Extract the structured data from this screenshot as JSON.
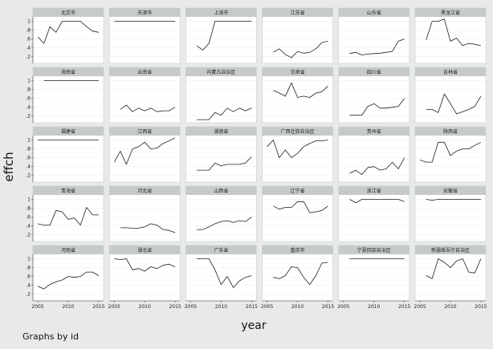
{
  "figure": {
    "footnote": "Graphs by id"
  },
  "chart_data": {
    "type": "line",
    "layout": "small-multiples",
    "xlabel": "year",
    "ylabel": "effch",
    "x": [
      2005,
      2006,
      2007,
      2008,
      2009,
      2010,
      2011,
      2012,
      2013,
      2014,
      2015
    ],
    "x_ticks": [
      2005,
      2010,
      2015
    ],
    "y_ticks": [
      0.2,
      0.4,
      0.6,
      0.8,
      1
    ],
    "y_tick_labels": [
      ".2",
      ".4",
      ".6",
      ".8",
      "1"
    ],
    "xlim": [
      2004.2,
      2015.8
    ],
    "ylim": [
      0.05,
      1.1
    ],
    "grid": true,
    "panels": [
      {
        "name": "北京市",
        "years": [
          2005,
          2006,
          2007,
          2008,
          2009,
          2010,
          2011,
          2012,
          2013,
          2014,
          2015
        ],
        "values": [
          0.65,
          0.5,
          0.88,
          0.75,
          1.0,
          1.0,
          1.0,
          1.0,
          0.88,
          0.78,
          0.75
        ]
      },
      {
        "name": "天津市",
        "years": [
          2005,
          2006,
          2007,
          2008,
          2009,
          2010,
          2011,
          2012,
          2013,
          2014,
          2015
        ],
        "values": [
          1.0,
          1.0,
          1.0,
          1.0,
          1.0,
          1.0,
          1.0,
          1.0,
          1.0,
          1.0,
          1.0
        ]
      },
      {
        "name": "上海市",
        "years": [
          2006,
          2007,
          2008,
          2009,
          2010,
          2011,
          2012,
          2013,
          2014,
          2015
        ],
        "values": [
          0.45,
          0.35,
          0.5,
          1.0,
          1.0,
          1.0,
          1.0,
          1.0,
          1.0,
          1.0
        ]
      },
      {
        "name": "江苏省",
        "years": [
          2006,
          2007,
          2008,
          2009,
          2010,
          2011,
          2012,
          2013,
          2014,
          2015
        ],
        "values": [
          0.3,
          0.38,
          0.25,
          0.18,
          0.32,
          0.28,
          0.3,
          0.38,
          0.52,
          0.55
        ]
      },
      {
        "name": "山东省",
        "years": [
          2006,
          2007,
          2008,
          2009,
          2010,
          2011,
          2012,
          2013,
          2014,
          2015
        ],
        "values": [
          0.27,
          0.3,
          0.24,
          0.26,
          0.27,
          0.28,
          0.3,
          0.32,
          0.55,
          0.6
        ]
      },
      {
        "name": "黑龙江省",
        "years": [
          2006,
          2007,
          2008,
          2009,
          2010,
          2011,
          2012,
          2013,
          2014,
          2015
        ],
        "values": [
          0.58,
          1.0,
          1.0,
          1.05,
          0.55,
          0.62,
          0.45,
          0.5,
          0.48,
          0.45
        ]
      },
      {
        "name": "海南省",
        "years": [
          2006,
          2007,
          2008,
          2009,
          2010,
          2011,
          2012,
          2013,
          2014,
          2015
        ],
        "values": [
          1.0,
          1.0,
          1.0,
          1.0,
          1.0,
          1.0,
          1.0,
          1.0,
          1.0,
          1.0
        ]
      },
      {
        "name": "云南省",
        "years": [
          2006,
          2007,
          2008,
          2009,
          2010,
          2011,
          2012,
          2013,
          2014,
          2015
        ],
        "values": [
          0.35,
          0.45,
          0.3,
          0.38,
          0.32,
          0.38,
          0.3,
          0.32,
          0.32,
          0.4
        ]
      },
      {
        "name": "内蒙古自治区",
        "years": [
          2006,
          2007,
          2008,
          2009,
          2010,
          2011,
          2012,
          2013,
          2014,
          2015
        ],
        "values": [
          0.12,
          0.12,
          0.12,
          0.28,
          0.22,
          0.38,
          0.3,
          0.38,
          0.32,
          0.38
        ]
      },
      {
        "name": "甘肃省",
        "years": [
          2006,
          2007,
          2008,
          2009,
          2010,
          2011,
          2012,
          2013,
          2014,
          2015
        ],
        "values": [
          0.78,
          0.72,
          0.65,
          0.95,
          0.62,
          0.65,
          0.62,
          0.72,
          0.75,
          0.88
        ]
      },
      {
        "name": "四川省",
        "years": [
          2006,
          2007,
          2008,
          2009,
          2010,
          2011,
          2012,
          2013,
          2014,
          2015
        ],
        "values": [
          0.22,
          0.22,
          0.22,
          0.42,
          0.48,
          0.38,
          0.38,
          0.4,
          0.42,
          0.6
        ]
      },
      {
        "name": "吉林省",
        "years": [
          2006,
          2007,
          2008,
          2009,
          2010,
          2011,
          2012,
          2013,
          2014,
          2015
        ],
        "values": [
          0.35,
          0.35,
          0.28,
          0.7,
          0.48,
          0.25,
          0.3,
          0.35,
          0.42,
          0.65
        ]
      },
      {
        "name": "福建省",
        "years": [
          2005,
          2006,
          2007,
          2008,
          2009,
          2010,
          2011,
          2012,
          2013,
          2014,
          2015
        ],
        "values": [
          1.0,
          1.0,
          1.0,
          1.0,
          1.0,
          1.0,
          1.0,
          1.0,
          1.0,
          1.0,
          1.0
        ]
      },
      {
        "name": "江西省",
        "years": [
          2005,
          2006,
          2007,
          2008,
          2009,
          2010,
          2011,
          2012,
          2013,
          2014,
          2015
        ],
        "values": [
          0.5,
          0.75,
          0.45,
          0.8,
          0.85,
          0.95,
          0.8,
          0.82,
          0.92,
          0.98,
          1.05
        ]
      },
      {
        "name": "湖南省",
        "years": [
          2006,
          2007,
          2008,
          2009,
          2010,
          2011,
          2012,
          2013,
          2014,
          2015
        ],
        "values": [
          0.32,
          0.32,
          0.32,
          0.48,
          0.42,
          0.45,
          0.45,
          0.45,
          0.48,
          0.62
        ]
      },
      {
        "name": "广西壮族自治区",
        "years": [
          2005,
          2006,
          2007,
          2008,
          2009,
          2010,
          2011,
          2012,
          2013,
          2014,
          2015
        ],
        "values": [
          0.85,
          1.0,
          0.6,
          0.78,
          0.6,
          0.7,
          0.85,
          0.92,
          0.98,
          0.98,
          1.0
        ]
      },
      {
        "name": "贵州省",
        "years": [
          2006,
          2007,
          2008,
          2009,
          2010,
          2011,
          2012,
          2013,
          2014,
          2015
        ],
        "values": [
          0.25,
          0.32,
          0.22,
          0.38,
          0.4,
          0.32,
          0.35,
          0.5,
          0.35,
          0.6
        ]
      },
      {
        "name": "陕西省",
        "years": [
          2005,
          2006,
          2007,
          2008,
          2009,
          2010,
          2011,
          2012,
          2013,
          2014,
          2015
        ],
        "values": [
          0.55,
          0.5,
          0.5,
          0.95,
          0.95,
          0.65,
          0.75,
          0.8,
          0.8,
          0.88,
          0.95
        ]
      },
      {
        "name": "青海省",
        "years": [
          2005,
          2006,
          2007,
          2008,
          2009,
          2010,
          2011,
          2012,
          2013,
          2014,
          2015
        ],
        "values": [
          0.45,
          0.42,
          0.42,
          0.75,
          0.72,
          0.55,
          0.58,
          0.42,
          0.82,
          0.65,
          0.65
        ]
      },
      {
        "name": "河北省",
        "years": [
          2006,
          2007,
          2008,
          2009,
          2010,
          2011,
          2012,
          2013,
          2014,
          2015
        ],
        "values": [
          0.36,
          0.36,
          0.35,
          0.35,
          0.38,
          0.45,
          0.42,
          0.32,
          0.3,
          0.25
        ]
      },
      {
        "name": "山西省",
        "years": [
          2006,
          2007,
          2008,
          2009,
          2010,
          2011,
          2012,
          2013,
          2014,
          2015
        ],
        "values": [
          0.32,
          0.32,
          0.38,
          0.45,
          0.5,
          0.52,
          0.48,
          0.52,
          0.5,
          0.6
        ]
      },
      {
        "name": "辽宁省",
        "years": [
          2006,
          2007,
          2008,
          2009,
          2010,
          2011,
          2012,
          2013,
          2014,
          2015
        ],
        "values": [
          0.85,
          0.78,
          0.82,
          0.82,
          0.95,
          0.95,
          0.7,
          0.72,
          0.75,
          0.85
        ]
      },
      {
        "name": "浙江省",
        "years": [
          2006,
          2007,
          2008,
          2009,
          2010,
          2011,
          2012,
          2013,
          2014,
          2015
        ],
        "values": [
          1.0,
          0.92,
          1.0,
          1.0,
          1.0,
          1.0,
          1.0,
          1.0,
          1.0,
          0.95
        ]
      },
      {
        "name": "安徽省",
        "years": [
          2006,
          2007,
          2008,
          2009,
          2010,
          2011,
          2012,
          2013,
          2014,
          2015
        ],
        "values": [
          1.0,
          0.98,
          1.0,
          1.0,
          1.0,
          1.0,
          1.0,
          1.0,
          1.0,
          1.0
        ]
      },
      {
        "name": "河南省",
        "years": [
          2005,
          2006,
          2007,
          2008,
          2009,
          2010,
          2011,
          2012,
          2013,
          2014,
          2015
        ],
        "values": [
          0.38,
          0.32,
          0.42,
          0.48,
          0.52,
          0.6,
          0.58,
          0.6,
          0.7,
          0.7,
          0.62
        ]
      },
      {
        "name": "湖北省",
        "years": [
          2005,
          2006,
          2007,
          2008,
          2009,
          2010,
          2011,
          2012,
          2013,
          2014,
          2015
        ],
        "values": [
          1.0,
          0.98,
          1.0,
          0.75,
          0.78,
          0.72,
          0.82,
          0.78,
          0.85,
          0.88,
          0.82
        ]
      },
      {
        "name": "广东省",
        "years": [
          2006,
          2007,
          2008,
          2009,
          2010,
          2011,
          2012,
          2013,
          2014,
          2015
        ],
        "values": [
          1.0,
          1.0,
          1.0,
          0.75,
          0.42,
          0.6,
          0.35,
          0.5,
          0.58,
          0.62
        ]
      },
      {
        "name": "重庆市",
        "years": [
          2006,
          2007,
          2008,
          2009,
          2010,
          2011,
          2012,
          2013,
          2014,
          2015
        ],
        "values": [
          0.58,
          0.55,
          0.62,
          0.82,
          0.8,
          0.58,
          0.42,
          0.62,
          0.9,
          0.92
        ]
      },
      {
        "name": "宁夏回族自治区",
        "years": [
          2006,
          2007,
          2008,
          2009,
          2010,
          2011,
          2012,
          2013,
          2014,
          2015
        ],
        "values": [
          1.0,
          1.0,
          1.0,
          1.0,
          1.0,
          1.0,
          1.0,
          1.0,
          1.0,
          1.0
        ]
      },
      {
        "name": "新疆维吾尔自治区",
        "years": [
          2006,
          2007,
          2008,
          2009,
          2010,
          2011,
          2012,
          2013,
          2014,
          2015
        ],
        "values": [
          0.62,
          0.55,
          1.0,
          0.92,
          0.8,
          0.95,
          1.0,
          0.7,
          0.68,
          1.0
        ]
      }
    ]
  }
}
